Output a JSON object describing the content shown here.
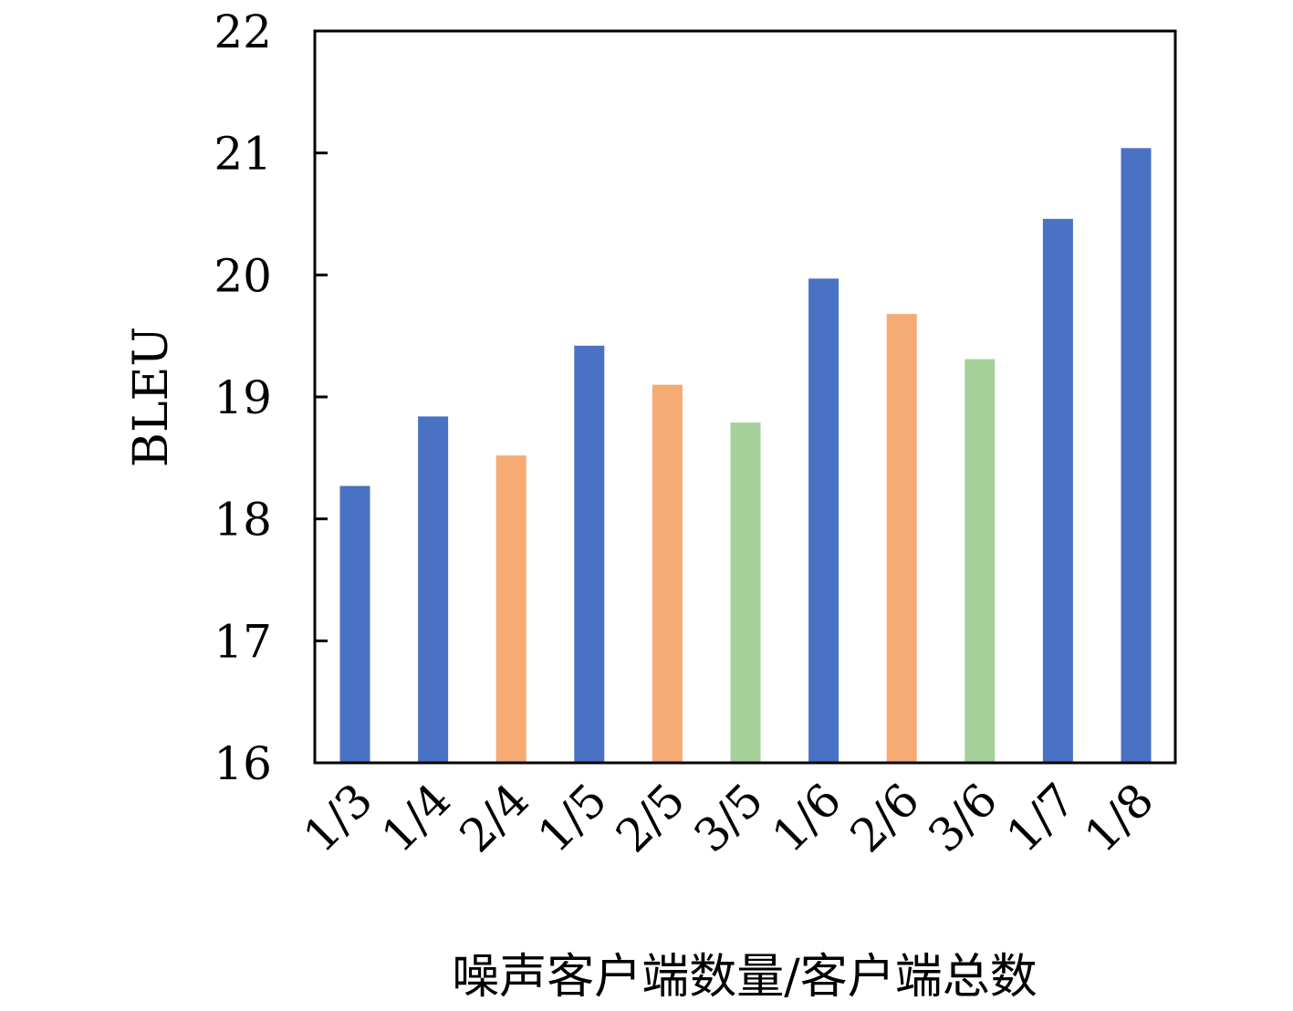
{
  "chart_data": {
    "type": "bar",
    "categories": [
      "1/3",
      "1/4",
      "2/4",
      "1/5",
      "2/5",
      "3/5",
      "1/6",
      "2/6",
      "3/6",
      "1/7",
      "1/8"
    ],
    "values": [
      18.27,
      18.84,
      18.52,
      19.42,
      19.1,
      18.79,
      19.97,
      19.68,
      19.31,
      20.46,
      21.04
    ],
    "bar_colors": [
      "#4a72c4",
      "#4a72c4",
      "#f6aa74",
      "#4a72c4",
      "#f6aa74",
      "#a6d19a",
      "#4a72c4",
      "#f6aa74",
      "#a6d19a",
      "#4a72c4",
      "#4a72c4"
    ],
    "xlabel": "噪声客户端数量/客户端总数",
    "ylabel": "BLEU",
    "ylim": [
      16,
      22
    ],
    "yticks": [
      "16",
      "17",
      "18",
      "19",
      "20",
      "21",
      "22"
    ],
    "grid": false
  }
}
